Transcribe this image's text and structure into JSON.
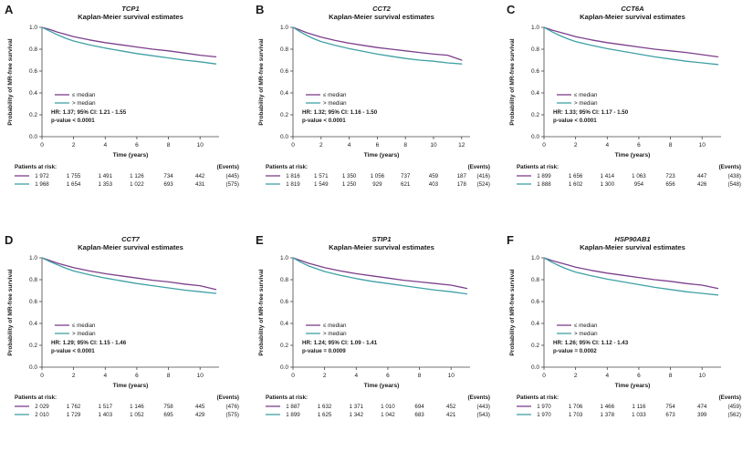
{
  "figure_title": "Kaplan-Meier survival estimates",
  "colors": {
    "le_median": "#7c3f8c",
    "gt_median": "#3fa0a5"
  },
  "chart_data": [
    {
      "type": "line",
      "letter": "A",
      "gene": "TCP1",
      "subtitle": "Kaplan-Meier survival estimates",
      "ylabel": "Probability of MR-free survival",
      "xlabel": "Time (years)",
      "y_ticks": [
        "0.0",
        "0.2",
        "0.4",
        "0.6",
        "0.8",
        "1.0"
      ],
      "x_ticks": [
        0,
        2,
        4,
        6,
        8,
        10
      ],
      "x_domain": 11.2,
      "ylim": [
        0,
        1
      ],
      "series": [
        {
          "name": "≤ median",
          "color": "#7c3f8c",
          "x": [
            0,
            0.5,
            1,
            1.5,
            2,
            3,
            4,
            5,
            6,
            7,
            8,
            9,
            10,
            11
          ],
          "y": [
            1.0,
            0.98,
            0.955,
            0.935,
            0.915,
            0.885,
            0.86,
            0.84,
            0.82,
            0.8,
            0.785,
            0.765,
            0.745,
            0.73
          ]
        },
        {
          "name": "> median",
          "color": "#3fa0a5",
          "x": [
            0,
            0.5,
            1,
            1.5,
            2,
            3,
            4,
            5,
            6,
            7,
            8,
            9,
            10,
            11
          ],
          "y": [
            1.0,
            0.965,
            0.93,
            0.9,
            0.875,
            0.84,
            0.81,
            0.785,
            0.76,
            0.74,
            0.72,
            0.7,
            0.685,
            0.665
          ]
        }
      ],
      "hr_text": "HR: 1.37; 95% CI: 1.21 - 1.55",
      "p_text": "p-value < 0.0001",
      "risk": {
        "header": "Patients at risk:",
        "events_header": "(Events)",
        "rows": [
          {
            "values": [
              "1 972",
              "1 755",
              "1 491",
              "1 126",
              "734",
              "442"
            ],
            "events": "(445)"
          },
          {
            "values": [
              "1 968",
              "1 654",
              "1 353",
              "1 022",
              "693",
              "431"
            ],
            "events": "(575)"
          }
        ]
      }
    },
    {
      "type": "line",
      "letter": "B",
      "gene": "CCT2",
      "subtitle": "Kaplan-Meier survival estimates",
      "ylabel": "Probability of MR-free survival",
      "xlabel": "Time (years)",
      "y_ticks": [
        "0.0",
        "0.2",
        "0.4",
        "0.6",
        "0.8",
        "1.0"
      ],
      "x_ticks": [
        0,
        2,
        4,
        6,
        8,
        10,
        12
      ],
      "x_domain": 12.6,
      "ylim": [
        0,
        1
      ],
      "series": [
        {
          "name": "≤ median",
          "color": "#7c3f8c",
          "x": [
            0,
            0.5,
            1,
            1.5,
            2,
            3,
            4,
            5,
            6,
            7,
            8,
            9,
            10,
            11,
            12
          ],
          "y": [
            1.0,
            0.975,
            0.95,
            0.93,
            0.91,
            0.88,
            0.855,
            0.835,
            0.815,
            0.8,
            0.785,
            0.77,
            0.755,
            0.745,
            0.7
          ]
        },
        {
          "name": "> median",
          "color": "#3fa0a5",
          "x": [
            0,
            0.5,
            1,
            1.5,
            2,
            3,
            4,
            5,
            6,
            7,
            8,
            9,
            10,
            11,
            12
          ],
          "y": [
            1.0,
            0.96,
            0.925,
            0.895,
            0.87,
            0.835,
            0.805,
            0.78,
            0.755,
            0.735,
            0.715,
            0.7,
            0.69,
            0.675,
            0.665
          ]
        }
      ],
      "hr_text": "HR: 1.32; 95% CI: 1.16 - 1.50",
      "p_text": "p-value < 0.0001",
      "risk": {
        "header": "Patients at risk:",
        "events_header": "(Events)",
        "rows": [
          {
            "values": [
              "1 816",
              "1 571",
              "1 350",
              "1 056",
              "737",
              "459",
              "187"
            ],
            "events": "(416)"
          },
          {
            "values": [
              "1 819",
              "1 549",
              "1 250",
              "929",
              "621",
              "403",
              "178"
            ],
            "events": "(524)"
          }
        ]
      }
    },
    {
      "type": "line",
      "letter": "C",
      "gene": "CCT6A",
      "subtitle": "Kaplan-Meier survival estimates",
      "ylabel": "Probability of MR-free survival",
      "xlabel": "Time (years)",
      "y_ticks": [
        "0.0",
        "0.2",
        "0.4",
        "0.6",
        "0.8",
        "1.0"
      ],
      "x_ticks": [
        0,
        2,
        4,
        6,
        8,
        10
      ],
      "x_domain": 11.2,
      "ylim": [
        0,
        1
      ],
      "series": [
        {
          "name": "≤ median",
          "color": "#7c3f8c",
          "x": [
            0,
            0.5,
            1,
            1.5,
            2,
            3,
            4,
            5,
            6,
            7,
            8,
            9,
            10,
            11
          ],
          "y": [
            1.0,
            0.975,
            0.955,
            0.935,
            0.915,
            0.885,
            0.86,
            0.84,
            0.82,
            0.8,
            0.785,
            0.77,
            0.75,
            0.73
          ]
        },
        {
          "name": "> median",
          "color": "#3fa0a5",
          "x": [
            0,
            0.5,
            1,
            1.5,
            2,
            3,
            4,
            5,
            6,
            7,
            8,
            9,
            10,
            11
          ],
          "y": [
            1.0,
            0.96,
            0.925,
            0.895,
            0.87,
            0.835,
            0.805,
            0.78,
            0.755,
            0.73,
            0.71,
            0.69,
            0.675,
            0.66
          ]
        }
      ],
      "hr_text": "HR: 1.33; 95% CI: 1.17 - 1.50",
      "p_text": "p-value < 0.0001",
      "risk": {
        "header": "Patients at risk:",
        "events_header": "(Events)",
        "rows": [
          {
            "values": [
              "1 899",
              "1 656",
              "1 414",
              "1 063",
              "723",
              "447"
            ],
            "events": "(438)"
          },
          {
            "values": [
              "1 888",
              "1 602",
              "1 300",
              "954",
              "656",
              "426"
            ],
            "events": "(548)"
          }
        ]
      }
    },
    {
      "type": "line",
      "letter": "D",
      "gene": "CCT7",
      "subtitle": "Kaplan-Meier survival estimates",
      "ylabel": "Probability of MR-free survival",
      "xlabel": "Time (years)",
      "y_ticks": [
        "0.0",
        "0.2",
        "0.4",
        "0.6",
        "0.8",
        "1.0"
      ],
      "x_ticks": [
        0,
        2,
        4,
        6,
        8,
        10
      ],
      "x_domain": 11.2,
      "ylim": [
        0,
        1
      ],
      "series": [
        {
          "name": "≤ median",
          "color": "#7c3f8c",
          "x": [
            0,
            0.5,
            1,
            1.5,
            2,
            3,
            4,
            5,
            6,
            7,
            8,
            9,
            10,
            11
          ],
          "y": [
            1.0,
            0.975,
            0.95,
            0.93,
            0.91,
            0.88,
            0.855,
            0.835,
            0.815,
            0.795,
            0.78,
            0.76,
            0.745,
            0.71
          ]
        },
        {
          "name": "> median",
          "color": "#3fa0a5",
          "x": [
            0,
            0.5,
            1,
            1.5,
            2,
            3,
            4,
            5,
            6,
            7,
            8,
            9,
            10,
            11
          ],
          "y": [
            1.0,
            0.965,
            0.935,
            0.905,
            0.88,
            0.845,
            0.815,
            0.79,
            0.765,
            0.745,
            0.725,
            0.705,
            0.69,
            0.675
          ]
        }
      ],
      "hr_text": "HR: 1.29; 95% CI: 1.15 - 1.46",
      "p_text": "p-value < 0.0001",
      "risk": {
        "header": "Patients at risk:",
        "events_header": "(Events)",
        "rows": [
          {
            "values": [
              "2 029",
              "1 762",
              "1 517",
              "1 146",
              "758",
              "445"
            ],
            "events": "(476)"
          },
          {
            "values": [
              "2 010",
              "1 729",
              "1 403",
              "1 052",
              "695",
              "429"
            ],
            "events": "(575)"
          }
        ]
      }
    },
    {
      "type": "line",
      "letter": "E",
      "gene": "STIP1",
      "subtitle": "Kaplan-Meier survival estimates",
      "ylabel": "Probability of MR-free survival",
      "xlabel": "Time (years)",
      "y_ticks": [
        "0.0",
        "0.2",
        "0.4",
        "0.6",
        "0.8",
        "1.0"
      ],
      "x_ticks": [
        0,
        2,
        4,
        6,
        8,
        10
      ],
      "x_domain": 11.2,
      "ylim": [
        0,
        1
      ],
      "series": [
        {
          "name": "≤ median",
          "color": "#7c3f8c",
          "x": [
            0,
            0.5,
            1,
            1.5,
            2,
            3,
            4,
            5,
            6,
            7,
            8,
            9,
            10,
            11
          ],
          "y": [
            1.0,
            0.975,
            0.95,
            0.93,
            0.91,
            0.88,
            0.855,
            0.835,
            0.815,
            0.795,
            0.78,
            0.765,
            0.75,
            0.72
          ]
        },
        {
          "name": "> median",
          "color": "#3fa0a5",
          "x": [
            0,
            0.5,
            1,
            1.5,
            2,
            3,
            4,
            5,
            6,
            7,
            8,
            9,
            10,
            11
          ],
          "y": [
            1.0,
            0.96,
            0.925,
            0.9,
            0.875,
            0.84,
            0.81,
            0.785,
            0.765,
            0.745,
            0.725,
            0.705,
            0.69,
            0.67
          ]
        }
      ],
      "hr_text": "HR: 1.24; 95% CI: 1.09 - 1.41",
      "p_text": "p-value = 0.0009",
      "risk": {
        "header": "Patients at risk:",
        "events_header": "(Events)",
        "rows": [
          {
            "values": [
              "1 887",
              "1 632",
              "1 371",
              "1 010",
              "694",
              "452"
            ],
            "events": "(443)"
          },
          {
            "values": [
              "1 899",
              "1 625",
              "1 342",
              "1 042",
              "683",
              "421"
            ],
            "events": "(543)"
          }
        ]
      }
    },
    {
      "type": "line",
      "letter": "F",
      "gene": "HSP90AB1",
      "subtitle": "Kaplan-Meier survival estimates",
      "ylabel": "Probability of MR-free survival",
      "xlabel": "Time (years)",
      "y_ticks": [
        "0.0",
        "0.2",
        "0.4",
        "0.6",
        "0.8",
        "1.0"
      ],
      "x_ticks": [
        0,
        2,
        4,
        6,
        8,
        10
      ],
      "x_domain": 11.2,
      "ylim": [
        0,
        1
      ],
      "series": [
        {
          "name": "≤ median",
          "color": "#7c3f8c",
          "x": [
            0,
            0.5,
            1,
            1.5,
            2,
            3,
            4,
            5,
            6,
            7,
            8,
            9,
            10,
            11
          ],
          "y": [
            1.0,
            0.975,
            0.955,
            0.935,
            0.915,
            0.885,
            0.86,
            0.84,
            0.82,
            0.8,
            0.785,
            0.765,
            0.75,
            0.72
          ]
        },
        {
          "name": "> median",
          "color": "#3fa0a5",
          "x": [
            0,
            0.5,
            1,
            1.5,
            2,
            3,
            4,
            5,
            6,
            7,
            8,
            9,
            10,
            11
          ],
          "y": [
            1.0,
            0.96,
            0.925,
            0.895,
            0.87,
            0.835,
            0.805,
            0.78,
            0.755,
            0.73,
            0.71,
            0.69,
            0.675,
            0.66
          ]
        }
      ],
      "hr_text": "HR: 1.26; 95% CI: 1.12 - 1.43",
      "p_text": "p-value = 0.0002",
      "risk": {
        "header": "Patients at risk:",
        "events_header": "(Events)",
        "rows": [
          {
            "values": [
              "1 970",
              "1 706",
              "1 466",
              "1 116",
              "754",
              "474"
            ],
            "events": "(459)"
          },
          {
            "values": [
              "1 970",
              "1 703",
              "1 378",
              "1 033",
              "673",
              "399"
            ],
            "events": "(562)"
          }
        ]
      }
    }
  ]
}
